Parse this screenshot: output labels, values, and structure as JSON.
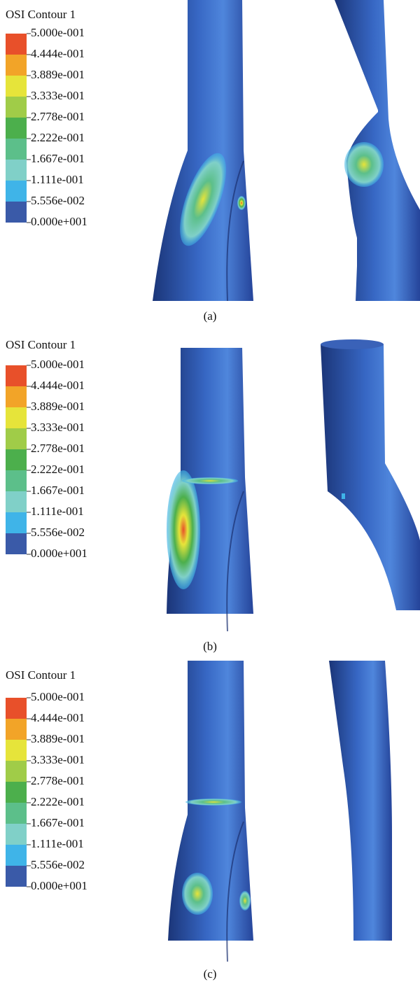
{
  "legend_colors": [
    "#e8502a",
    "#f2a428",
    "#e6e43a",
    "#a0cc48",
    "#4caf4c",
    "#5cbf8a",
    "#80d0c8",
    "#3fb4e8",
    "#3a5aa8"
  ],
  "panels": [
    {
      "legend": {
        "title": "OSI Contour 1",
        "ticks": [
          "5.000e-001",
          "4.444e-001",
          "3.889e-001",
          "3.333e-001",
          "2.778e-001",
          "2.222e-001",
          "1.667e-001",
          "1.111e-001",
          "5.556e-002",
          "0.000e+001"
        ]
      },
      "caption": "(a)"
    },
    {
      "legend": {
        "title": "OSI Contour 1",
        "ticks": [
          "5.000e-001",
          "4.444e-001",
          "3.889e-001",
          "3.333e-001",
          "2.778e-001",
          "2.222e-001",
          "1.667e-001",
          "1.111e-001",
          "5.556e-002",
          "0.000e+001"
        ]
      },
      "caption": "(b)"
    },
    {
      "legend": {
        "title": "OSI Contour 1",
        "ticks": [
          "5.000e-001",
          "4.444e-001",
          "3.889e-001",
          "3.333e-001",
          "2.778e-001",
          "2.222e-001",
          "1.667e-001",
          "1.111e-001",
          "5.556e-002",
          "0.000e+001"
        ]
      },
      "caption": "(c)"
    }
  ]
}
